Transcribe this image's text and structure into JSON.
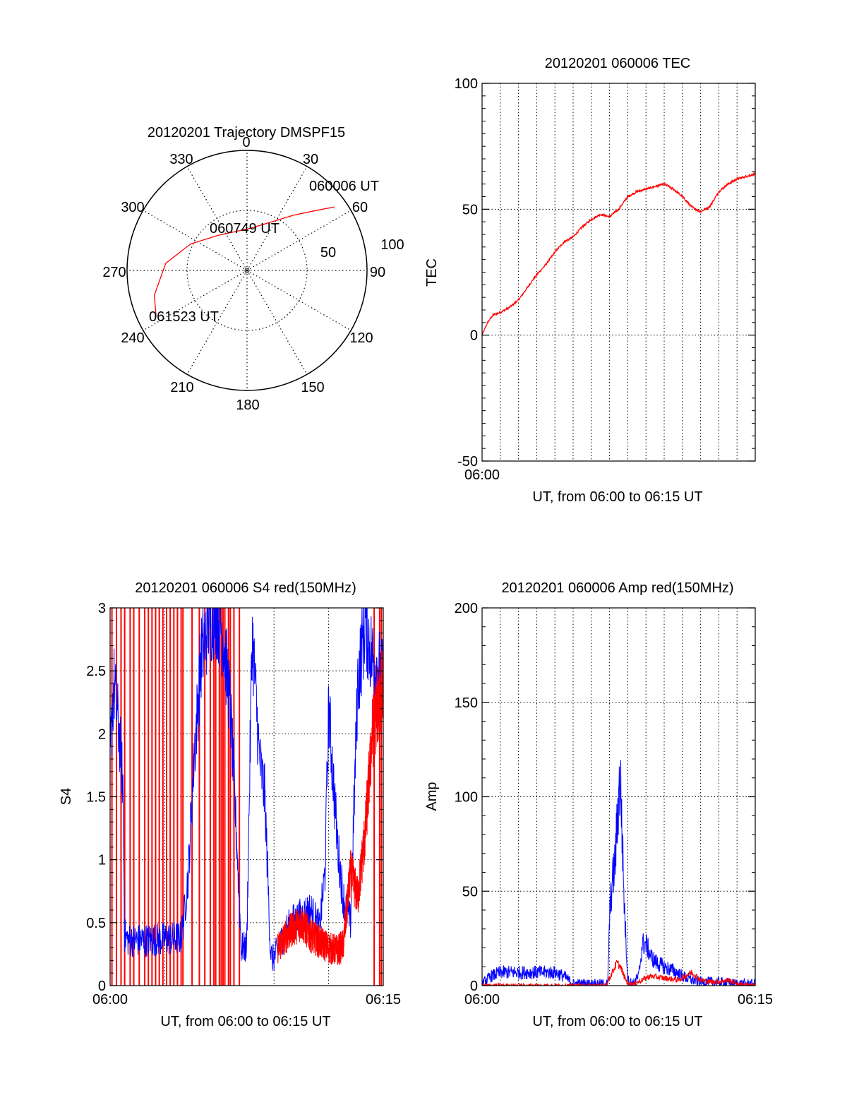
{
  "colors": {
    "red": "#ff0000",
    "blue": "#0000ff",
    "axis": "#000000",
    "grid": "#000000"
  },
  "chart_data": [
    {
      "id": "polar",
      "type": "polar-trajectory",
      "title": "20120201 Trajectory DMSPF15",
      "azimuth_labels": [
        "0",
        "30",
        "60",
        "90",
        "120",
        "150",
        "180",
        "210",
        "240",
        "270",
        "300",
        "330"
      ],
      "elevation_labels": [
        "50",
        "100"
      ],
      "elevation_rings": [
        50,
        100
      ],
      "trajectory": [
        {
          "az": 54,
          "el": 90
        },
        {
          "az": 49,
          "el": 76
        },
        {
          "az": 40,
          "el": 60
        },
        {
          "az": 22,
          "el": 42
        },
        {
          "az": 3,
          "el": 35
        },
        {
          "az": 340,
          "el": 34
        },
        {
          "az": 320,
          "el": 38
        },
        {
          "az": 295,
          "el": 52
        },
        {
          "az": 275,
          "el": 68
        },
        {
          "az": 255,
          "el": 80
        },
        {
          "az": 243,
          "el": 85
        }
      ],
      "annotations": [
        {
          "text": "060006 UT",
          "az": 52,
          "el": 100
        },
        {
          "text": "060749 UT",
          "az": 351,
          "el": 40
        },
        {
          "text": "061523 UT",
          "az": 248,
          "el": 62
        }
      ]
    },
    {
      "id": "tec",
      "type": "line",
      "title": "20120201 060006 TEC",
      "xlabel": "UT, from 06:00 to 06:15 UT",
      "ylabel": "TEC",
      "xlim": [
        0,
        15
      ],
      "ylim": [
        -50,
        100
      ],
      "yticks": [
        -50,
        0,
        50,
        100
      ],
      "xtick_labels": [
        {
          "x": 0,
          "label": "06:00"
        }
      ],
      "grid_x_step": 1,
      "grid": true,
      "series": [
        {
          "color": "red",
          "noise": 0.6,
          "x": [
            0,
            0.3,
            0.6,
            1.0,
            1.5,
            2.0,
            2.5,
            3.0,
            3.5,
            4.0,
            4.5,
            5.0,
            5.5,
            6.0,
            6.5,
            7.0,
            7.5,
            8.0,
            8.5,
            9.0,
            9.5,
            10.0,
            10.5,
            11.0,
            11.5,
            12.0,
            12.5,
            13.0,
            13.5,
            14.0,
            14.5,
            15.0
          ],
          "y": [
            0,
            5,
            8,
            9,
            11,
            14,
            19,
            24,
            28,
            33,
            37,
            39,
            43,
            46,
            48,
            47,
            50,
            55,
            57,
            58,
            59,
            60,
            58,
            55,
            51,
            49,
            51,
            57,
            60,
            62,
            63,
            64
          ]
        }
      ]
    },
    {
      "id": "s4",
      "type": "line",
      "title": "20120201 060006 S4 red(150MHz)",
      "xlabel": "UT, from 06:00 to 06:15 UT",
      "ylabel": "S4",
      "xlim": [
        0,
        15
      ],
      "ylim": [
        0,
        3
      ],
      "yticks": [
        0,
        0.5,
        1,
        1.5,
        2,
        2.5,
        3
      ],
      "xtick_labels": [
        {
          "x": 0,
          "label": "06:00"
        },
        {
          "x": 15,
          "label": "06:15"
        }
      ],
      "grid_x_step": 3,
      "grid": true,
      "red_spikes": [
        0.1,
        0.35,
        0.6,
        0.8,
        1.1,
        1.3,
        1.6,
        1.9,
        2.1,
        2.3,
        2.5,
        2.7,
        2.9,
        3.1,
        3.3,
        3.5,
        3.7,
        3.9,
        4.0,
        4.5,
        4.9,
        5.2,
        5.5,
        5.7,
        5.8,
        6.0,
        6.1,
        6.2,
        6.3,
        6.5,
        6.6,
        6.8,
        7.1,
        14.5,
        14.8,
        14.9
      ],
      "series": [
        {
          "color": "blue",
          "noise": 0.25,
          "x": [
            0,
            0.2,
            0.5,
            0.7,
            0.8,
            1.0,
            2.0,
            3.0,
            3.9,
            4.1,
            4.3,
            4.6,
            5.0,
            5.4,
            5.8,
            6.2,
            6.6,
            7.0,
            7.2,
            7.5,
            7.8,
            8.2,
            8.5,
            8.8,
            8.9,
            9.2,
            9.6,
            10.0,
            10.5,
            11.0,
            11.5,
            11.8,
            12.0,
            12.5,
            12.8,
            13.2,
            13.6,
            14.0,
            14.4,
            14.8,
            15.0
          ],
          "y": [
            1.8,
            2.4,
            2.0,
            1.6,
            0.4,
            0.36,
            0.36,
            0.37,
            0.38,
            0.6,
            0.9,
            1.8,
            2.6,
            2.9,
            3.0,
            2.8,
            2.2,
            1.0,
            0.3,
            0.3,
            2.8,
            1.8,
            1.5,
            0.3,
            0.2,
            0.28,
            0.42,
            0.5,
            0.55,
            0.6,
            0.45,
            0.9,
            2.2,
            1.1,
            0.7,
            0.5,
            2.4,
            2.9,
            2.6,
            2.5,
            2.4
          ]
        },
        {
          "color": "red",
          "noise": 0.25,
          "x": [
            9.2,
            9.6,
            10.0,
            10.5,
            11.0,
            11.5,
            12.0,
            12.5,
            12.8,
            13.2,
            13.6,
            14.0,
            14.4,
            14.8,
            15.0
          ],
          "y": [
            0.3,
            0.38,
            0.45,
            0.5,
            0.4,
            0.35,
            0.3,
            0.28,
            0.32,
            0.9,
            0.7,
            1.2,
            2.0,
            2.3,
            2.4
          ]
        }
      ]
    },
    {
      "id": "amp",
      "type": "line",
      "title": "20120201 060006 Amp red(150MHz)",
      "xlabel": "UT, from 06:00 to 06:15 UT",
      "ylabel": "Amp",
      "xlim": [
        0,
        15
      ],
      "ylim": [
        0,
        200
      ],
      "yticks": [
        0,
        50,
        100,
        150,
        200
      ],
      "xtick_labels": [
        {
          "x": 0,
          "label": "06:00"
        },
        {
          "x": 15,
          "label": "06:15"
        }
      ],
      "grid_x_step": 1,
      "grid": true,
      "series": [
        {
          "color": "blue",
          "noise": 6,
          "x": [
            0,
            0.5,
            1.0,
            2.0,
            3.0,
            4.0,
            4.5,
            5.0,
            6.0,
            6.5,
            6.9,
            7.0,
            7.1,
            7.3,
            7.5,
            7.6,
            7.8,
            8.0,
            8.3,
            8.6,
            8.8,
            9.0,
            9.3,
            9.6,
            10.0,
            10.5,
            11.0,
            11.5,
            12.0,
            13.0,
            14.0,
            15.0
          ],
          "y": [
            1,
            5,
            7,
            7,
            7,
            7,
            5,
            1,
            1,
            1,
            1,
            35,
            50,
            65,
            100,
            110,
            45,
            3,
            1,
            5,
            22,
            22,
            15,
            12,
            10,
            8,
            5,
            3,
            2,
            2,
            1,
            1
          ]
        },
        {
          "color": "red",
          "noise": 3,
          "x": [
            0,
            6.8,
            7.1,
            7.4,
            7.6,
            7.8,
            8.0,
            8.4,
            8.8,
            9.2,
            10.0,
            10.8,
            11.5,
            12.0,
            12.5,
            13.0,
            13.5,
            14.0,
            15.0
          ],
          "y": [
            0,
            0,
            6,
            12,
            10,
            5,
            1,
            1,
            3,
            5,
            4,
            3,
            7,
            3,
            2,
            2,
            3,
            1,
            0
          ]
        }
      ]
    }
  ]
}
